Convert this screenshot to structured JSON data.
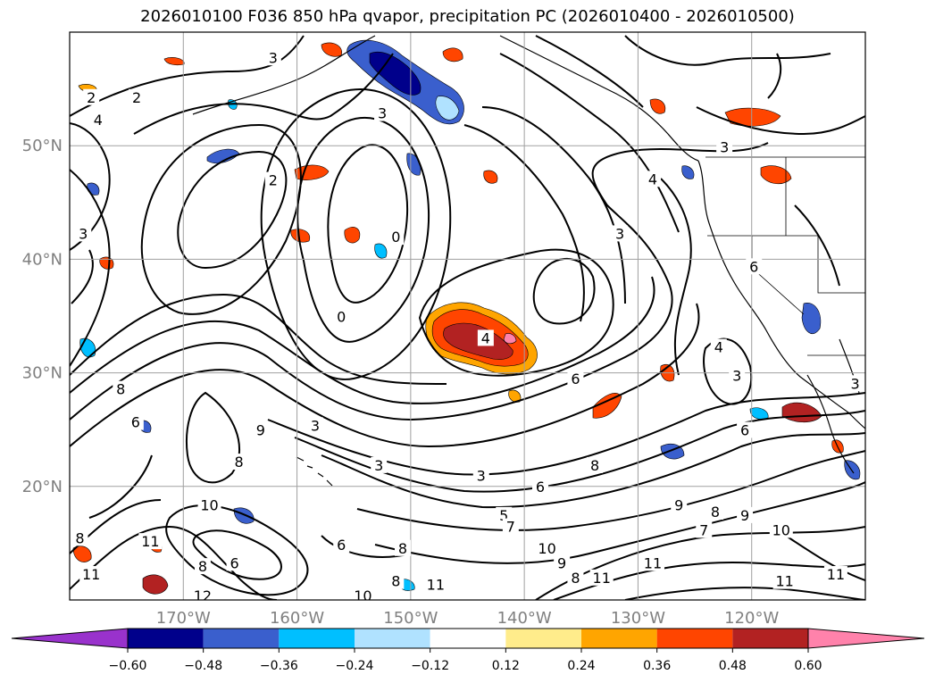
{
  "figure": {
    "title": "2026010100 F036 850 hPa qvapor, precipitation PC (2026010400 - 2026010500)"
  },
  "map": {
    "lon_range": [
      -180,
      -110
    ],
    "lat_range": [
      10,
      60
    ],
    "lon_ticks": [
      {
        "lon": -170,
        "label": "170°W"
      },
      {
        "lon": -160,
        "label": "160°W"
      },
      {
        "lon": -150,
        "label": "150°W"
      },
      {
        "lon": -140,
        "label": "140°W"
      },
      {
        "lon": -130,
        "label": "130°W"
      },
      {
        "lon": -120,
        "label": "120°W"
      }
    ],
    "lat_ticks": [
      {
        "lat": 50,
        "label": "50°N"
      },
      {
        "lat": 40,
        "label": "40°N"
      },
      {
        "lat": 30,
        "label": "30°N"
      },
      {
        "lat": 20,
        "label": "20°N"
      }
    ],
    "grid": true,
    "contour_labels": [
      {
        "t": "3",
        "lon": -162.1,
        "lat": 57.7
      },
      {
        "t": "2",
        "lon": -178.1,
        "lat": 54.2
      },
      {
        "t": "2",
        "lon": -174.1,
        "lat": 54.2
      },
      {
        "t": "4",
        "lon": -177.5,
        "lat": 52.2
      },
      {
        "t": "3",
        "lon": -152.5,
        "lat": 52.8
      },
      {
        "t": "2",
        "lon": -162.1,
        "lat": 46.9
      },
      {
        "t": "0",
        "lon": -151.3,
        "lat": 41.9
      },
      {
        "t": "0",
        "lon": -156.1,
        "lat": 34.9
      },
      {
        "t": "4",
        "lon": -143.4,
        "lat": 33.0
      },
      {
        "t": "3",
        "lon": -178.8,
        "lat": 42.2
      },
      {
        "t": "4",
        "lon": -128.7,
        "lat": 47.0
      },
      {
        "t": "3",
        "lon": -131.6,
        "lat": 42.2
      },
      {
        "t": "3",
        "lon": -122.4,
        "lat": 49.8
      },
      {
        "t": "6",
        "lon": -119.8,
        "lat": 39.3
      },
      {
        "t": "6",
        "lon": -135.5,
        "lat": 29.4
      },
      {
        "t": "6",
        "lon": -120.6,
        "lat": 24.9
      },
      {
        "t": "8",
        "lon": -175.5,
        "lat": 28.5
      },
      {
        "t": "6",
        "lon": -174.2,
        "lat": 25.6
      },
      {
        "t": "9",
        "lon": -163.2,
        "lat": 24.9
      },
      {
        "t": "3",
        "lon": -158.4,
        "lat": 25.3
      },
      {
        "t": "3",
        "lon": -152.8,
        "lat": 21.8
      },
      {
        "t": "3",
        "lon": -143.8,
        "lat": 20.9
      },
      {
        "t": "5",
        "lon": -141.8,
        "lat": 17.4
      },
      {
        "t": "6",
        "lon": -138.6,
        "lat": 19.9
      },
      {
        "t": "7",
        "lon": -141.2,
        "lat": 16.4
      },
      {
        "t": "8",
        "lon": -133.8,
        "lat": 21.8
      },
      {
        "t": "9",
        "lon": -126.4,
        "lat": 18.3
      },
      {
        "t": "10",
        "lon": -167.7,
        "lat": 18.3
      },
      {
        "t": "8",
        "lon": -165.1,
        "lat": 22.1
      },
      {
        "t": "11",
        "lon": -172.9,
        "lat": 15.1
      },
      {
        "t": "11",
        "lon": -178.1,
        "lat": 12.2
      },
      {
        "t": "8",
        "lon": -179.1,
        "lat": 15.4
      },
      {
        "t": "8",
        "lon": -168.3,
        "lat": 12.9
      },
      {
        "t": "6",
        "lon": -165.5,
        "lat": 13.2
      },
      {
        "t": "8",
        "lon": -151.3,
        "lat": 11.6
      },
      {
        "t": "11",
        "lon": -147.8,
        "lat": 11.3
      },
      {
        "t": "10",
        "lon": -154.2,
        "lat": 10.3
      },
      {
        "t": "6",
        "lon": -156.1,
        "lat": 14.8
      },
      {
        "t": "8",
        "lon": -150.7,
        "lat": 14.5
      },
      {
        "t": "10",
        "lon": -138.0,
        "lat": 14.5
      },
      {
        "t": "9",
        "lon": -136.7,
        "lat": 13.2
      },
      {
        "t": "8",
        "lon": -135.5,
        "lat": 11.9
      },
      {
        "t": "11",
        "lon": -133.2,
        "lat": 11.9
      },
      {
        "t": "11",
        "lon": -128.7,
        "lat": 13.2
      },
      {
        "t": "7",
        "lon": -124.2,
        "lat": 16.1
      },
      {
        "t": "8",
        "lon": -123.2,
        "lat": 17.7
      },
      {
        "t": "9",
        "lon": -120.6,
        "lat": 17.4
      },
      {
        "t": "10",
        "lon": -117.4,
        "lat": 16.1
      },
      {
        "t": "11",
        "lon": -117.1,
        "lat": 11.6
      },
      {
        "t": "11",
        "lon": -112.6,
        "lat": 12.2
      },
      {
        "t": "12",
        "lon": -168.3,
        "lat": 10.3
      },
      {
        "t": "4",
        "lon": -122.9,
        "lat": 32.2
      },
      {
        "t": "3",
        "lon": -121.3,
        "lat": 29.7
      },
      {
        "t": "3",
        "lon": -110.9,
        "lat": 29.0
      }
    ]
  },
  "colorbar": {
    "levels": [
      -0.6,
      -0.48,
      -0.36,
      -0.24,
      -0.12,
      0.12,
      0.24,
      0.36,
      0.48,
      0.6
    ],
    "tick_labels": [
      "−0.60",
      "−0.48",
      "−0.36",
      "−0.24",
      "−0.12",
      "0.12",
      "0.24",
      "0.36",
      "0.48",
      "0.60"
    ],
    "colors": [
      "#9932cc",
      "#00008b",
      "#3a5fcd",
      "#00bfff",
      "#b0e2ff",
      "#ffffff",
      "#ffec8b",
      "#ffa500",
      "#ff4500",
      "#b22222",
      "#ff82ab"
    ],
    "extend": "both"
  }
}
